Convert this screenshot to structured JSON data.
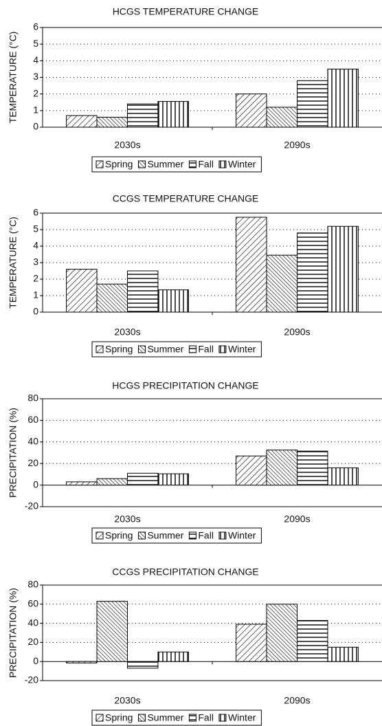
{
  "chart_data": [
    {
      "type": "bar",
      "title": "HCGS TEMPERATURE CHANGE",
      "y_label": "TEMPERATURE (°C)",
      "categories": [
        "2030s",
        "2090s"
      ],
      "series": [
        {
          "name": "Spring",
          "color": "#000000",
          "pattern": "diagonal-down",
          "values": [
            0.7,
            2.0
          ]
        },
        {
          "name": "Summer",
          "color": "#000000",
          "pattern": "diagonal-up",
          "values": [
            0.6,
            1.2
          ]
        },
        {
          "name": "Fall",
          "color": "#000000",
          "pattern": "horizontal",
          "values": [
            1.4,
            2.8
          ]
        },
        {
          "name": "Winter",
          "color": "#000000",
          "pattern": "vertical",
          "values": [
            1.55,
            3.5
          ]
        }
      ],
      "ylim": [
        0,
        6
      ],
      "yticks": [
        0,
        1,
        2,
        3,
        4,
        5,
        6
      ],
      "grid": true,
      "legend": "bottom"
    },
    {
      "type": "bar",
      "title": "CCGS TEMPERATURE CHANGE",
      "y_label": "TEMPERATURE (°C)",
      "categories": [
        "2030s",
        "2090s"
      ],
      "series": [
        {
          "name": "Spring",
          "color": "#000000",
          "pattern": "diagonal-down",
          "values": [
            2.6,
            5.75
          ]
        },
        {
          "name": "Summer",
          "color": "#000000",
          "pattern": "diagonal-up",
          "values": [
            1.7,
            3.45
          ]
        },
        {
          "name": "Fall",
          "color": "#000000",
          "pattern": "horizontal",
          "values": [
            2.5,
            4.8
          ]
        },
        {
          "name": "Winter",
          "color": "#000000",
          "pattern": "vertical",
          "values": [
            1.35,
            5.2
          ]
        }
      ],
      "ylim": [
        0,
        6
      ],
      "yticks": [
        0,
        1,
        2,
        3,
        4,
        5,
        6
      ],
      "grid": true,
      "legend": "bottom"
    },
    {
      "type": "bar",
      "title": "HCGS PRECIPITATION CHANGE",
      "y_label": "PRECIPITATION (%)",
      "categories": [
        "2030s",
        "2090s"
      ],
      "series": [
        {
          "name": "Spring",
          "color": "#000000",
          "pattern": "diagonal-down",
          "values": [
            3,
            27
          ]
        },
        {
          "name": "Summer",
          "color": "#000000",
          "pattern": "diagonal-up",
          "values": [
            6,
            32.5
          ]
        },
        {
          "name": "Fall",
          "color": "#000000",
          "pattern": "horizontal",
          "values": [
            11,
            31.5
          ]
        },
        {
          "name": "Winter",
          "color": "#000000",
          "pattern": "vertical",
          "values": [
            10.5,
            16
          ]
        }
      ],
      "ylim": [
        -20,
        80
      ],
      "yticks": [
        -20,
        0,
        20,
        40,
        60,
        80
      ],
      "grid": true,
      "legend": "bottom"
    },
    {
      "type": "bar",
      "title": "CCGS PRECIPITATION CHANGE",
      "y_label": "PRECIPITATION (%)",
      "categories": [
        "2030s",
        "2090s"
      ],
      "series": [
        {
          "name": "Spring",
          "color": "#000000",
          "pattern": "diagonal-down",
          "values": [
            -1.5,
            39
          ]
        },
        {
          "name": "Summer",
          "color": "#000000",
          "pattern": "diagonal-up",
          "values": [
            63,
            60
          ]
        },
        {
          "name": "Fall",
          "color": "#000000",
          "pattern": "horizontal",
          "values": [
            -7,
            43
          ]
        },
        {
          "name": "Winter",
          "color": "#000000",
          "pattern": "vertical",
          "values": [
            10,
            15
          ]
        }
      ],
      "ylim": [
        -20,
        80
      ],
      "yticks": [
        -20,
        0,
        20,
        40,
        60,
        80
      ],
      "grid": true,
      "legend": "bottom"
    }
  ]
}
